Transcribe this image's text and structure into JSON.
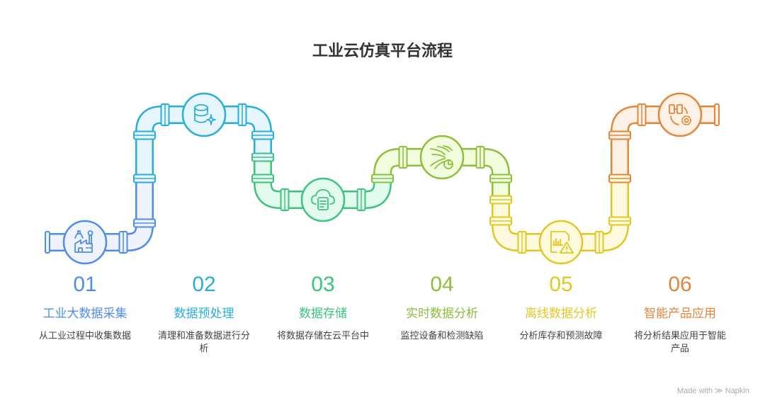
{
  "title": "工业云仿真平台流程",
  "steps": [
    {
      "number": "01",
      "title": "工业大数据采集",
      "description": "从工业过程中收集数据",
      "icon": "factory-robot-arm-icon",
      "color": "#4E8DE8",
      "fill": "#EEF3FE"
    },
    {
      "number": "02",
      "title": "数据预处理",
      "description": "清理和准备数据进行分析",
      "icon": "database-sparkle-icon",
      "color": "#27AEDD",
      "fill": "#E6F6FC"
    },
    {
      "number": "03",
      "title": "数据存储",
      "description": "将数据存储在云平台中",
      "icon": "cloud-document-icon",
      "color": "#3CC47F",
      "fill": "#E2FBEE"
    },
    {
      "number": "04",
      "title": "实时数据分析",
      "description": "监控设备和检测缺陷",
      "icon": "data-stream-chart-icon",
      "color": "#8DBF3A",
      "fill": "#F2FDDD"
    },
    {
      "number": "05",
      "title": "离线数据分析",
      "description": "分析库存和预测故障",
      "icon": "report-warning-icon",
      "color": "#E2C722",
      "fill": "#FEFADF"
    },
    {
      "number": "06",
      "title": "智能产品应用",
      "description": "将分析结果应用于智能产品",
      "icon": "devices-gear-icon",
      "color": "#E4853A",
      "fill": "#FEF1E6"
    }
  ],
  "watermark": "Made with ≫ Napkin"
}
